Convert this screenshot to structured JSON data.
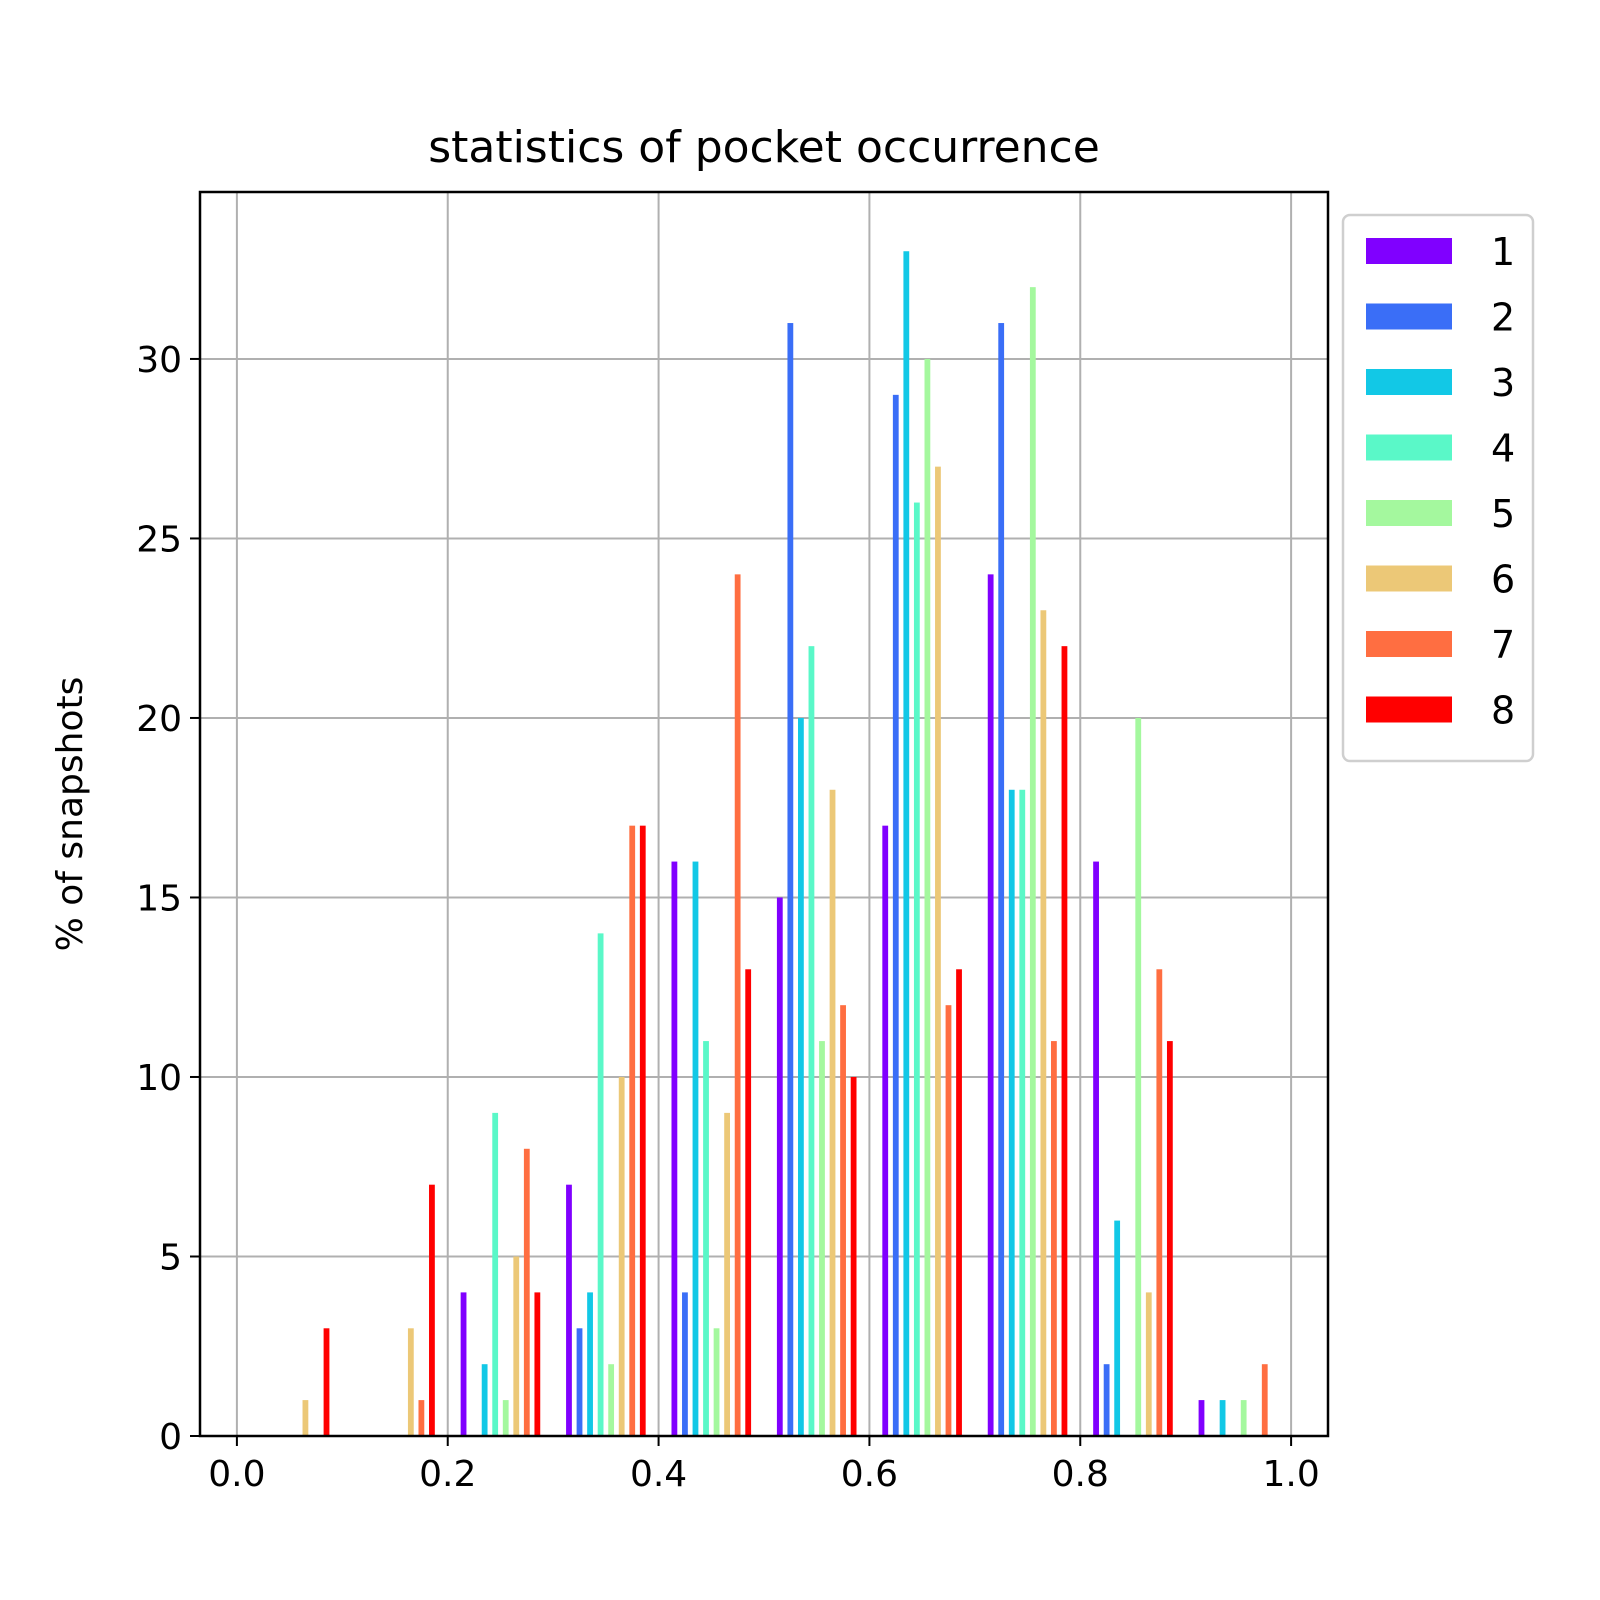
{
  "chart_data": {
    "type": "bar",
    "title": "statistics of  pocket occurrence",
    "xlabel": "",
    "ylabel": "% of snapshots",
    "xlim": [
      -0.035,
      1.035
    ],
    "ylim": [
      0,
      34.65
    ],
    "xticks": [
      0.0,
      0.2,
      0.4,
      0.6,
      0.8,
      1.0
    ],
    "xtick_labels": [
      "0.0",
      "0.2",
      "0.4",
      "0.6",
      "0.8",
      "1.0"
    ],
    "yticks": [
      0,
      5,
      10,
      15,
      20,
      25,
      30
    ],
    "ytick_labels": [
      "0",
      "5",
      "10",
      "15",
      "20",
      "25",
      "30"
    ],
    "grid": true,
    "legend_position": "outside-right-top",
    "bin_centers": [
      0.05,
      0.15,
      0.25,
      0.35,
      0.45,
      0.55,
      0.65,
      0.75,
      0.85,
      0.95
    ],
    "series": [
      {
        "name": "1",
        "color": "#8000ff",
        "values": [
          0,
          0,
          4,
          7,
          16,
          15,
          17,
          24,
          16,
          1
        ]
      },
      {
        "name": "2",
        "color": "#3a6ef7",
        "values": [
          0,
          0,
          0,
          3,
          4,
          31,
          29,
          31,
          2,
          0
        ]
      },
      {
        "name": "3",
        "color": "#12c8e6",
        "values": [
          0,
          0,
          2,
          4,
          16,
          20,
          33,
          18,
          6,
          1
        ]
      },
      {
        "name": "4",
        "color": "#5af8c8",
        "values": [
          0,
          0,
          9,
          14,
          11,
          22,
          26,
          18,
          0,
          0
        ]
      },
      {
        "name": "5",
        "color": "#a4f89e",
        "values": [
          0,
          0,
          1,
          2,
          3,
          11,
          30,
          32,
          20,
          1
        ]
      },
      {
        "name": "6",
        "color": "#ecc877",
        "values": [
          1,
          3,
          5,
          10,
          9,
          18,
          27,
          23,
          4,
          0
        ]
      },
      {
        "name": "7",
        "color": "#ff6e41",
        "values": [
          0,
          1,
          8,
          17,
          24,
          12,
          12,
          11,
          13,
          2
        ]
      },
      {
        "name": "8",
        "color": "#ff0000",
        "values": [
          3,
          7,
          4,
          17,
          13,
          10,
          13,
          22,
          11,
          0
        ]
      }
    ]
  }
}
